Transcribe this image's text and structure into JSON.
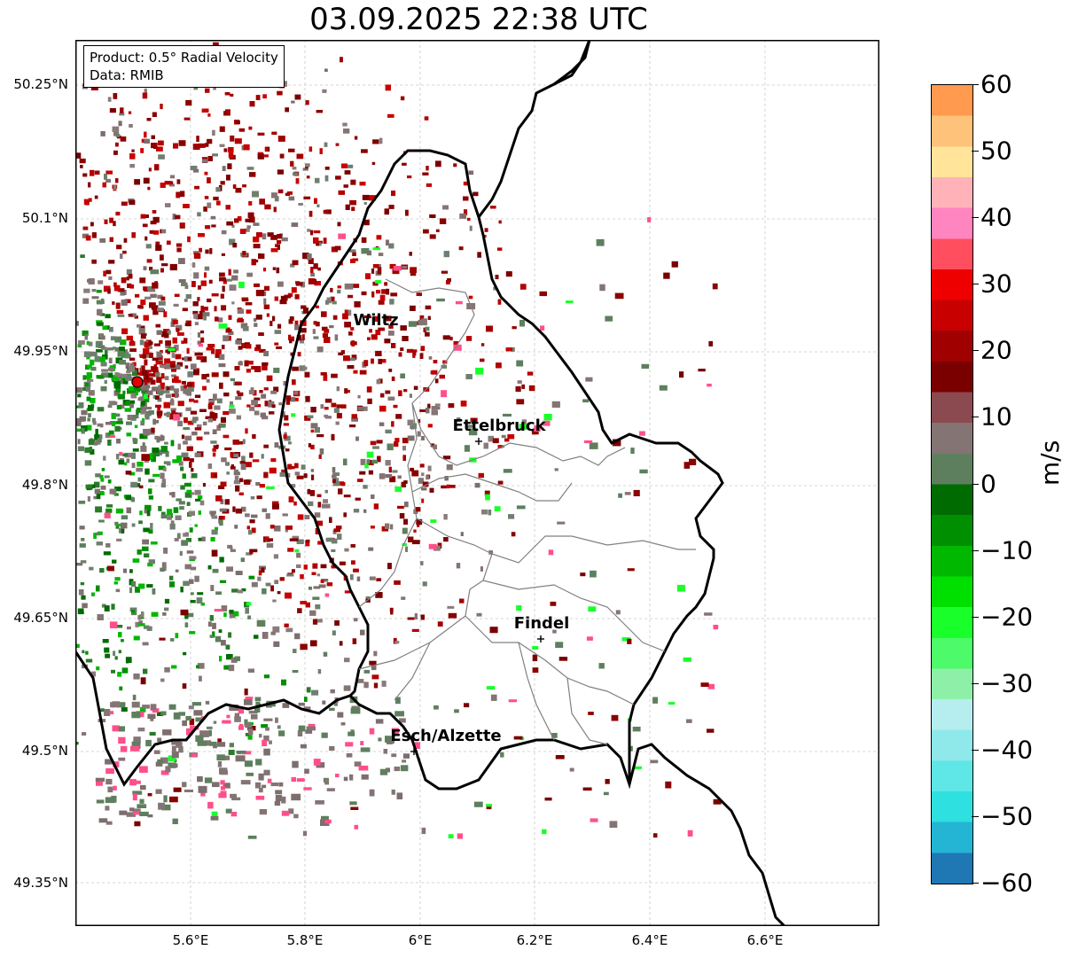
{
  "title": "03.09.2025 22:38 UTC",
  "info_box": {
    "product": "Product: 0.5° Radial Velocity",
    "source": "Data: RMIB"
  },
  "latitude_labels": [
    "50.25°N",
    "50.1°N",
    "49.95°N",
    "49.8°N",
    "49.65°N",
    "49.5°N",
    "49.35°N"
  ],
  "longitude_labels": [
    "5.6°E",
    "5.8°E",
    "6°E",
    "6.2°E",
    "6.4°E",
    "6.6°E"
  ],
  "cities": [
    {
      "name": "Wiltz",
      "key": "wiltz"
    },
    {
      "name": "Ettelbruck",
      "key": "ettelbruck"
    },
    {
      "name": "Findel",
      "key": "findel"
    },
    {
      "name": "Esch/Alzette",
      "key": "esch"
    }
  ],
  "colorbar": {
    "unit": "m/s",
    "tick_labels": [
      "60",
      "50",
      "40",
      "30",
      "20",
      "10",
      "0",
      "−10",
      "−20",
      "−30",
      "−40",
      "−50",
      "−60"
    ],
    "min": -60,
    "max": 60,
    "colors": [
      "#1f77b4",
      "#23b5d3",
      "#2ee0e0",
      "#5fe6e6",
      "#8fe9ea",
      "#b6eef0",
      "#8ef0a8",
      "#4dfa6a",
      "#19ff2a",
      "#00e000",
      "#00b800",
      "#008f00",
      "#006b00",
      "#5e7f5e",
      "#857474",
      "#8a4a4f",
      "#7a0000",
      "#a00000",
      "#c80000",
      "#ee0000",
      "#ff4f5f",
      "#ff85c0",
      "#ffb3b8",
      "#ffe49a",
      "#ffc27a",
      "#ff9a4f"
    ]
  },
  "radar_site_icon": "radar-site-marker-icon",
  "city_marker_icon": "plus-marker-icon"
}
